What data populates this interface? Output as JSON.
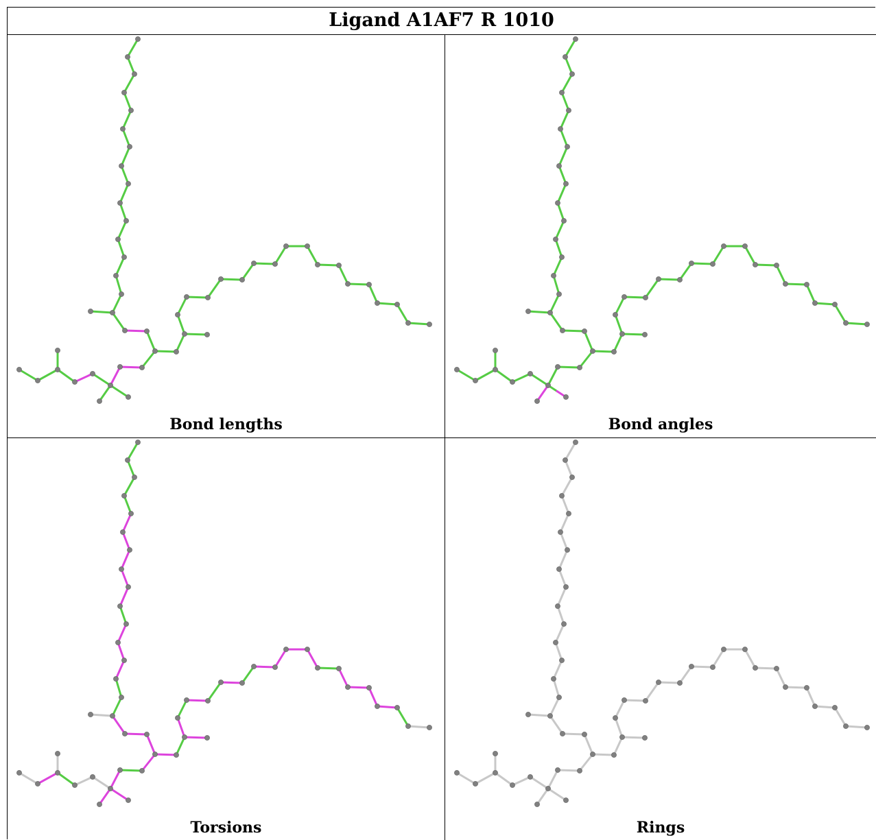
{
  "title": "Ligand A1AF7 R 1010",
  "panels": [
    {
      "caption": "Bond lengths"
    },
    {
      "caption": "Bond angles"
    },
    {
      "caption": "Torsions"
    },
    {
      "caption": "Rings"
    }
  ],
  "colors": {
    "ok": "#55cc44",
    "outlier": "#dd44dd",
    "neutral": "#c8c8c8",
    "atom": "#808080"
  }
}
